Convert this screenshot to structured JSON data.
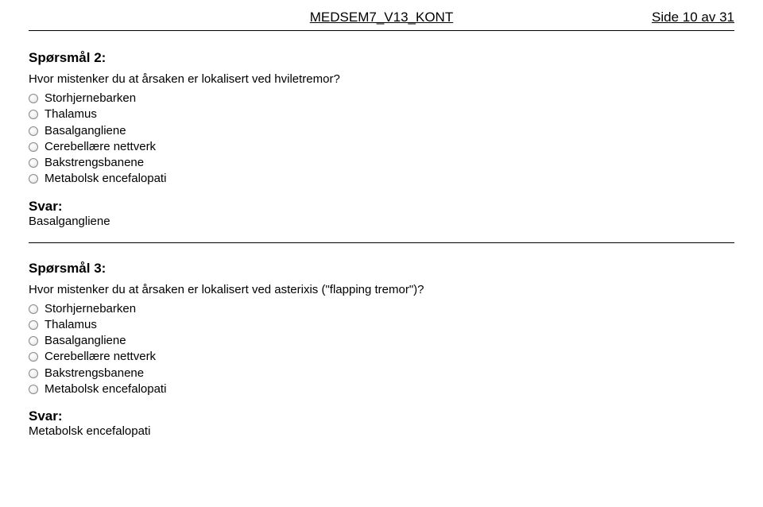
{
  "header": {
    "title": "MEDSEM7_V13_KONT",
    "page_label": "Side 10 av 31"
  },
  "questions": [
    {
      "title": "Spørsmål 2:",
      "text": "Hvor mistenker du at årsaken er lokalisert ved hviletremor?",
      "options": [
        "Storhjernebarken",
        "Thalamus",
        "Basalgangliene",
        "Cerebellære nettverk",
        "Bakstrengsbanene",
        "Metabolsk encefalopati"
      ],
      "answer_label": "Svar:",
      "answer": "Basalgangliene"
    },
    {
      "title": "Spørsmål 3:",
      "text": "Hvor mistenker du at årsaken er lokalisert ved asterixis (\"flapping tremor\")?",
      "options": [
        "Storhjernebarken",
        "Thalamus",
        "Basalgangliene",
        "Cerebellære nettverk",
        "Bakstrengsbanene",
        "Metabolsk encefalopati"
      ],
      "answer_label": "Svar:",
      "answer": "Metabolsk encefalopati"
    }
  ]
}
